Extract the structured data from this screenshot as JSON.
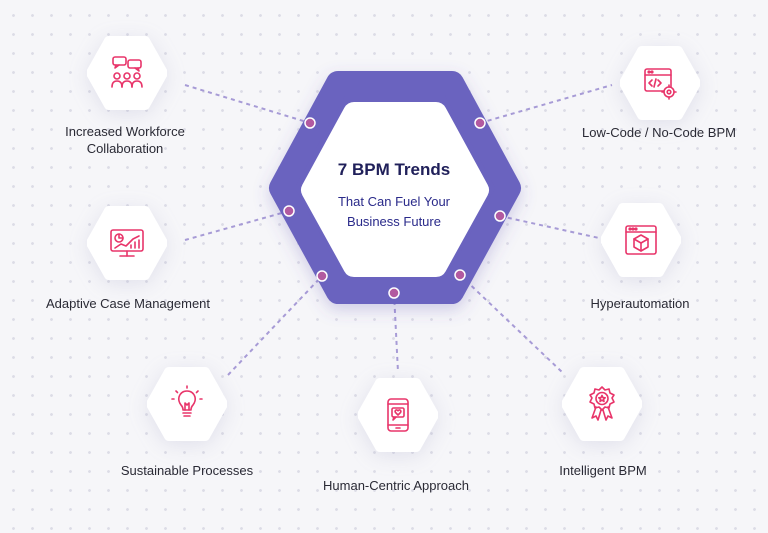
{
  "center": {
    "title": "7 BPM Trends",
    "subtitle_line1": "That Can Fuel Your",
    "subtitle_line2": "Business Future"
  },
  "colors": {
    "primary": "#6b63bf",
    "accent": "#e8356a",
    "connector": "#a79bd6",
    "dot": "#b25aa0"
  },
  "trends": [
    {
      "id": "collaboration",
      "label_line1": "Increased Workforce",
      "label_line2": "Collaboration",
      "icon": "chat-people-icon"
    },
    {
      "id": "low-code",
      "label_line1": "Low-Code / No-Code BPM",
      "icon": "code-window-gear-icon"
    },
    {
      "id": "case-management",
      "label_line1": "Adaptive Case Management",
      "icon": "analytics-monitor-icon"
    },
    {
      "id": "hyperautomation",
      "label_line1": "Hyperautomation",
      "icon": "browser-cube-icon"
    },
    {
      "id": "sustainable",
      "label_line1": "Sustainable Processes",
      "icon": "lightbulb-icon"
    },
    {
      "id": "human-centric",
      "label_line1": "Human-Centric Approach",
      "icon": "phone-heart-icon"
    },
    {
      "id": "intelligent",
      "label_line1": "Intelligent BPM",
      "icon": "award-badge-icon"
    }
  ]
}
